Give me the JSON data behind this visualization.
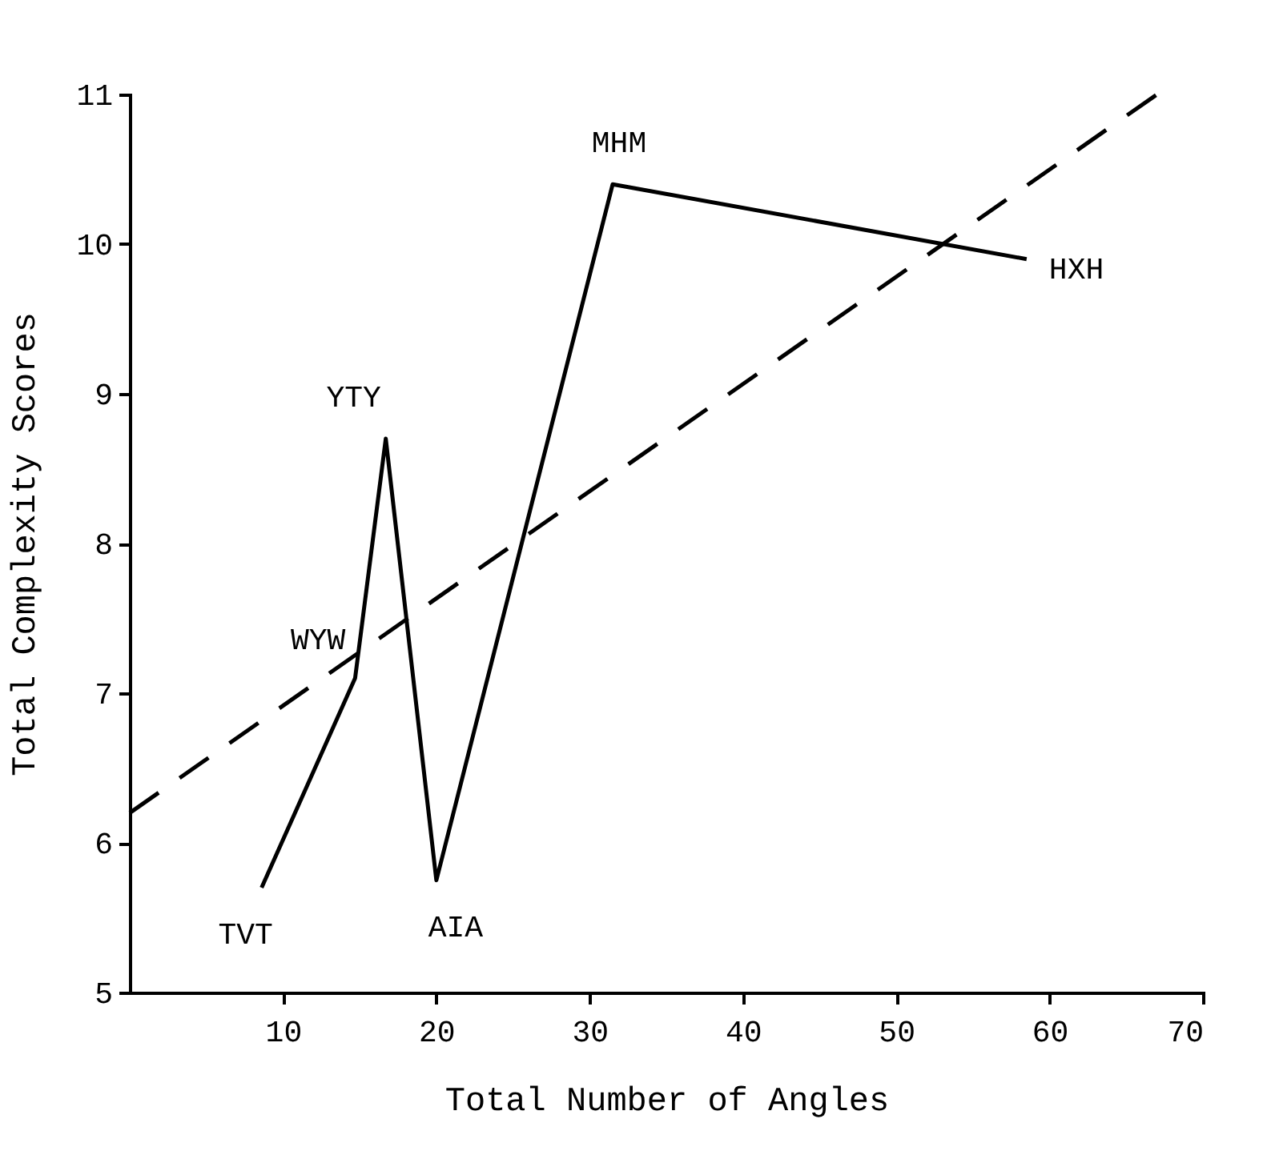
{
  "chart_data": {
    "type": "line",
    "xlabel": "Total Number of Angles",
    "ylabel": "Total Complexity Scores",
    "xlim": [
      0,
      70
    ],
    "xticks": [
      10,
      20,
      30,
      40,
      50,
      60,
      70
    ],
    "ylim": [
      5,
      11
    ],
    "yticks": [
      5,
      6,
      7,
      8,
      9,
      10,
      11
    ],
    "grid": false,
    "marker": "none",
    "series": [
      {
        "color": "#000000",
        "line_style": "solid",
        "x": [
          8.6,
          14.7,
          16.7,
          20,
          31.5,
          58.5
        ],
        "values": [
          5.7,
          7.1,
          8.7,
          5.75,
          10.4,
          9.9
        ]
      },
      {
        "color": "#000000",
        "line_style": "dashed",
        "x": [
          0,
          67
        ],
        "values": [
          6.2,
          11
        ]
      }
    ],
    "annotations": [
      {
        "text": "TVT",
        "x": 8.6,
        "y": 5.7
      },
      {
        "text": "WYW",
        "x": 14.7,
        "y": 7.1
      },
      {
        "text": "YTY",
        "x": 16.7,
        "y": 8.7
      },
      {
        "text": "AIA",
        "x": 20,
        "y": 5.75
      },
      {
        "text": "MHM",
        "x": 31.5,
        "y": 10.4
      },
      {
        "text": "HXH",
        "x": 58.5,
        "y": 9.9
      }
    ]
  }
}
